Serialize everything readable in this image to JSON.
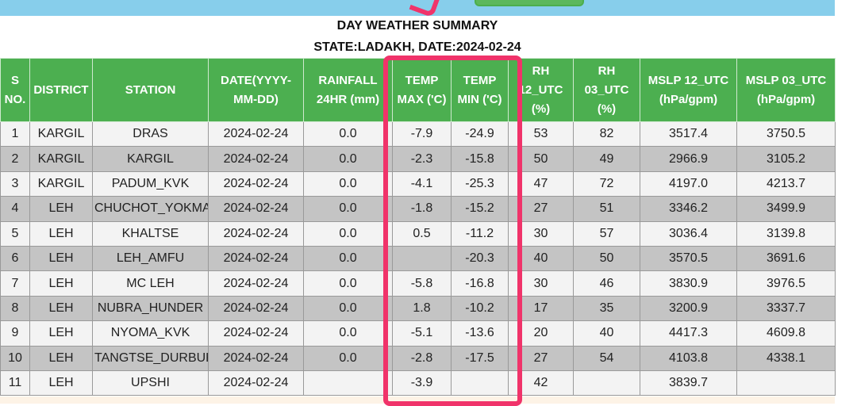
{
  "header": {
    "title": "DAY WEATHER SUMMARY",
    "subtitle": "STATE:LADAKH, DATE:2024-02-24"
  },
  "table": {
    "columns": [
      "S NO.",
      "DISTRICT",
      "STATION",
      "DATE(YYYY-MM-DD)",
      "RAINFALL 24HR (mm)",
      "TEMP MAX ('C)",
      "TEMP MIN ('C)",
      "RH 12_UTC (%)",
      "RH 03_UTC (%)",
      "MSLP 12_UTC (hPa/gpm)",
      "MSLP 03_UTC (hPa/gpm)"
    ],
    "rows": [
      [
        "1",
        "KARGIL",
        "DRAS",
        "2024-02-24",
        "0.0",
        "-7.9",
        "-24.9",
        "53",
        "82",
        "3517.4",
        "3750.5"
      ],
      [
        "2",
        "KARGIL",
        "KARGIL",
        "2024-02-24",
        "0.0",
        "-2.3",
        "-15.8",
        "50",
        "49",
        "2966.9",
        "3105.2"
      ],
      [
        "3",
        "KARGIL",
        "PADUM_KVK",
        "2024-02-24",
        "0.0",
        "-4.1",
        "-25.3",
        "47",
        "72",
        "4197.0",
        "4213.7"
      ],
      [
        "4",
        "LEH",
        "CHUCHOT_YOKMA",
        "2024-02-24",
        "0.0",
        "-1.8",
        "-15.2",
        "27",
        "51",
        "3346.2",
        "3499.9"
      ],
      [
        "5",
        "LEH",
        "KHALTSE",
        "2024-02-24",
        "0.0",
        "0.5",
        "-11.2",
        "30",
        "57",
        "3036.4",
        "3139.8"
      ],
      [
        "6",
        "LEH",
        "LEH_AMFU",
        "2024-02-24",
        "0.0",
        null,
        "-20.3",
        "40",
        "50",
        "3570.5",
        "3691.6"
      ],
      [
        "7",
        "LEH",
        "MC LEH",
        "2024-02-24",
        "0.0",
        "-5.8",
        "-16.8",
        "30",
        "46",
        "3830.9",
        "3976.5"
      ],
      [
        "8",
        "LEH",
        "NUBRA_HUNDER",
        "2024-02-24",
        "0.0",
        "1.8",
        "-10.2",
        "17",
        "35",
        "3200.9",
        "3337.7"
      ],
      [
        "9",
        "LEH",
        "NYOMA_KVK",
        "2024-02-24",
        "0.0",
        "-5.1",
        "-13.6",
        "20",
        "40",
        "4417.3",
        "4609.8"
      ],
      [
        "10",
        "LEH",
        "TANGTSE_DURBUK",
        "2024-02-24",
        "0.0",
        "-2.8",
        "-17.5",
        "27",
        "54",
        "4103.8",
        "4338.1"
      ],
      [
        "11",
        "LEH",
        "UPSHI",
        "2024-02-24",
        null,
        "-3.9",
        null,
        "42",
        null,
        "3839.7",
        null
      ]
    ]
  }
}
